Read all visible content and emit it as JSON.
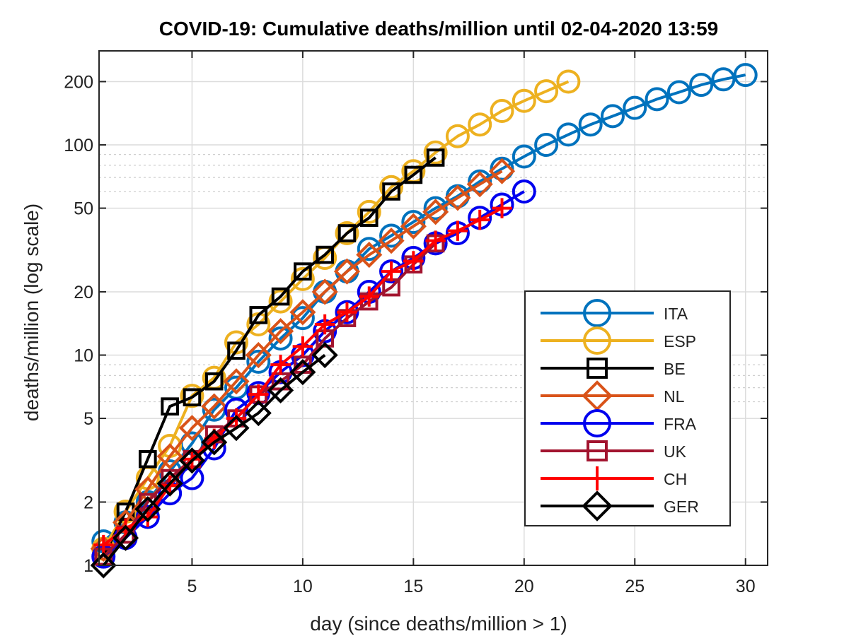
{
  "chart_data": {
    "type": "line",
    "title": "COVID-19: Cumulative deaths/million until 02-04-2020 13:59",
    "xlabel": "day (since deaths/million > 1)",
    "ylabel": "deaths/million (log scale)",
    "xlim": [
      0.8,
      31
    ],
    "ylim": [
      1,
      280
    ],
    "yscale": "log",
    "xticks": [
      5,
      10,
      15,
      20,
      25,
      30
    ],
    "yticks": [
      1,
      2,
      5,
      10,
      20,
      50,
      100,
      200
    ],
    "grid": true,
    "legend_position": "bottom-right",
    "series": [
      {
        "name": "ITA",
        "color": "#0072BD",
        "marker": "circle",
        "x": [
          1,
          2,
          3,
          4,
          5,
          6,
          7,
          8,
          9,
          10,
          11,
          12,
          13,
          14,
          15,
          16,
          17,
          18,
          19,
          20,
          21,
          22,
          23,
          24,
          25,
          26,
          27,
          28,
          29,
          30
        ],
        "y": [
          1.3,
          1.6,
          2.0,
          2.8,
          3.8,
          5.5,
          7.0,
          9.3,
          12.0,
          15.0,
          20.0,
          25.0,
          32.0,
          37.0,
          43.0,
          50.0,
          57.0,
          67.0,
          77.0,
          88.0,
          100,
          112,
          125,
          137,
          150,
          165,
          178,
          193,
          205,
          215
        ]
      },
      {
        "name": "ESP",
        "color": "#EDB120",
        "marker": "circle",
        "x": [
          1,
          2,
          3,
          4,
          5,
          6,
          7,
          8,
          9,
          10,
          11,
          12,
          13,
          14,
          15,
          16,
          17,
          18,
          19,
          20,
          21,
          22
        ],
        "y": [
          1.2,
          1.8,
          2.6,
          3.7,
          6.4,
          7.8,
          11.5,
          14.0,
          18.0,
          23.0,
          29.0,
          38.0,
          48.0,
          63.0,
          75.0,
          92.0,
          110,
          125,
          145,
          162,
          180,
          200
        ]
      },
      {
        "name": "BE",
        "color": "#000000",
        "marker": "square",
        "x": [
          1,
          2,
          3,
          4,
          5,
          6,
          7,
          8,
          9,
          10,
          11,
          12,
          13,
          14,
          15,
          16
        ],
        "y": [
          1.1,
          1.8,
          3.2,
          5.7,
          6.3,
          7.5,
          10.5,
          15.5,
          19.0,
          25.0,
          30.0,
          38.0,
          45.0,
          60.0,
          72.0,
          87.0
        ]
      },
      {
        "name": "NL",
        "color": "#D95319",
        "marker": "diamond",
        "x": [
          1,
          2,
          3,
          4,
          5,
          6,
          7,
          8,
          9,
          10,
          11,
          12,
          13,
          14,
          15,
          16,
          17,
          18,
          19
        ],
        "y": [
          1.2,
          1.6,
          2.3,
          3.3,
          4.5,
          5.7,
          7.5,
          10.0,
          13.0,
          16.0,
          20.0,
          25.0,
          30.0,
          35.0,
          41.0,
          48.0,
          56.0,
          65.0,
          75.0
        ]
      },
      {
        "name": "FRA",
        "color": "#0000EE",
        "marker": "circle",
        "x": [
          1,
          2,
          3,
          4,
          5,
          6,
          7,
          8,
          9,
          10,
          11,
          12,
          13,
          14,
          15,
          16,
          17,
          18,
          19,
          20
        ],
        "y": [
          1.1,
          1.35,
          1.7,
          2.2,
          2.6,
          3.6,
          5.5,
          6.6,
          8.3,
          10.0,
          13.0,
          16.0,
          20.0,
          25.0,
          29.0,
          34.0,
          38.0,
          45.0,
          52.0,
          60.0
        ]
      },
      {
        "name": "UK",
        "color": "#A2142F",
        "marker": "square",
        "x": [
          1,
          2,
          3,
          4,
          5,
          6,
          7,
          8,
          9,
          10,
          11,
          12,
          13,
          14,
          15,
          16
        ],
        "y": [
          1.1,
          1.4,
          2.0,
          2.6,
          3.2,
          4.2,
          5.0,
          6.5,
          7.5,
          9.0,
          12.0,
          15.0,
          18.0,
          21.0,
          27.0,
          34.0
        ]
      },
      {
        "name": "CH",
        "color": "#FF0000",
        "marker": "plus",
        "x": [
          1,
          2,
          3,
          4,
          5,
          6,
          7,
          8,
          9,
          10,
          11,
          12,
          13,
          14,
          15,
          16,
          17,
          18,
          19
        ],
        "y": [
          1.25,
          1.5,
          1.7,
          2.4,
          3.2,
          4.0,
          5.0,
          6.5,
          9.0,
          11.0,
          14.0,
          16.0,
          19.0,
          25.0,
          28.0,
          35.0,
          39.0,
          44.0,
          50.0
        ]
      },
      {
        "name": "GER",
        "color": "#000000",
        "marker": "diamond",
        "x": [
          1,
          2,
          3,
          4,
          5,
          6,
          7,
          8,
          9,
          10,
          11
        ],
        "y": [
          1.0,
          1.35,
          1.85,
          2.45,
          3.15,
          3.85,
          4.5,
          5.3,
          6.8,
          8.3,
          10.0
        ]
      }
    ]
  }
}
